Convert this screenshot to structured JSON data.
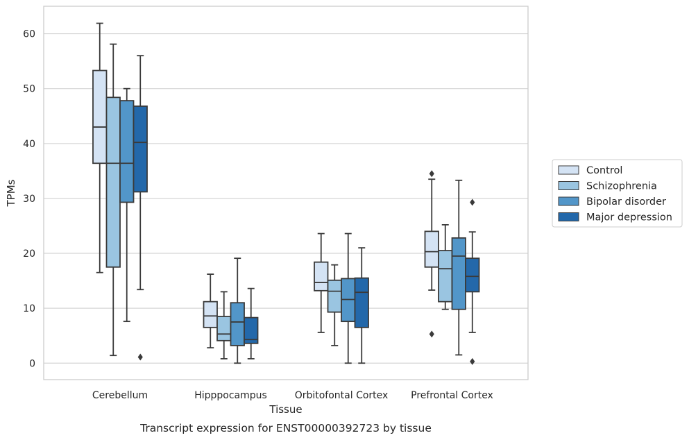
{
  "chart_data": {
    "type": "box",
    "title": "",
    "caption": "Transcript expression for ENST00000392723 by tissue",
    "xlabel": "Tissue",
    "ylabel": "TPMs",
    "ylim": [
      -3,
      65
    ],
    "yticks": [
      0,
      10,
      20,
      30,
      40,
      50,
      60
    ],
    "grid": "horizontal",
    "legend_position": "right",
    "categories": [
      "Cerebellum",
      "Hipppocampus",
      "Orbitofontal Cortex",
      "Prefrontal Cortex"
    ],
    "series": [
      {
        "name": "Control",
        "color": "#d4e3f4",
        "boxes": [
          {
            "whislo": 16.5,
            "q1": 36.4,
            "med": 43.0,
            "q3": 53.3,
            "whishi": 61.9,
            "fliers": []
          },
          {
            "whislo": 2.8,
            "q1": 6.5,
            "med": 8.6,
            "q3": 11.2,
            "whishi": 16.2,
            "fliers": []
          },
          {
            "whislo": 5.6,
            "q1": 13.2,
            "med": 14.7,
            "q3": 18.4,
            "whishi": 23.6,
            "fliers": []
          },
          {
            "whislo": 13.3,
            "q1": 17.5,
            "med": 20.3,
            "q3": 24.0,
            "whishi": 33.5,
            "fliers": [
              34.5,
              5.3
            ]
          }
        ]
      },
      {
        "name": "Schizophrenia",
        "color": "#9ac5e1",
        "boxes": [
          {
            "whislo": 1.4,
            "q1": 17.5,
            "med": 36.4,
            "q3": 48.4,
            "whishi": 58.1,
            "fliers": []
          },
          {
            "whislo": 0.8,
            "q1": 4.1,
            "med": 5.3,
            "q3": 8.5,
            "whishi": 13.0,
            "fliers": []
          },
          {
            "whislo": 3.2,
            "q1": 9.3,
            "med": 13.1,
            "q3": 15.1,
            "whishi": 17.9,
            "fliers": []
          },
          {
            "whislo": 9.8,
            "q1": 11.2,
            "med": 17.2,
            "q3": 20.5,
            "whishi": 25.2,
            "fliers": []
          }
        ]
      },
      {
        "name": "Bipolar disorder",
        "color": "#5296c9",
        "boxes": [
          {
            "whislo": 7.6,
            "q1": 29.3,
            "med": 36.4,
            "q3": 47.8,
            "whishi": 50.0,
            "fliers": []
          },
          {
            "whislo": 0.0,
            "q1": 3.2,
            "med": 7.5,
            "q3": 11.0,
            "whishi": 19.1,
            "fliers": []
          },
          {
            "whislo": 0.0,
            "q1": 7.6,
            "med": 11.6,
            "q3": 15.4,
            "whishi": 23.6,
            "fliers": []
          },
          {
            "whislo": 1.5,
            "q1": 9.8,
            "med": 19.5,
            "q3": 22.8,
            "whishi": 33.3,
            "fliers": []
          }
        ]
      },
      {
        "name": "Major depression",
        "color": "#2368aa",
        "boxes": [
          {
            "whislo": 13.4,
            "q1": 31.2,
            "med": 40.2,
            "q3": 46.8,
            "whishi": 56.0,
            "fliers": [
              1.1
            ]
          },
          {
            "whislo": 0.8,
            "q1": 3.6,
            "med": 4.3,
            "q3": 8.3,
            "whishi": 13.6,
            "fliers": []
          },
          {
            "whislo": 0.0,
            "q1": 6.5,
            "med": 12.9,
            "q3": 15.5,
            "whishi": 21.0,
            "fliers": []
          },
          {
            "whislo": 5.6,
            "q1": 13.0,
            "med": 15.8,
            "q3": 19.1,
            "whishi": 23.9,
            "fliers": [
              29.3,
              0.3
            ]
          }
        ]
      }
    ]
  }
}
